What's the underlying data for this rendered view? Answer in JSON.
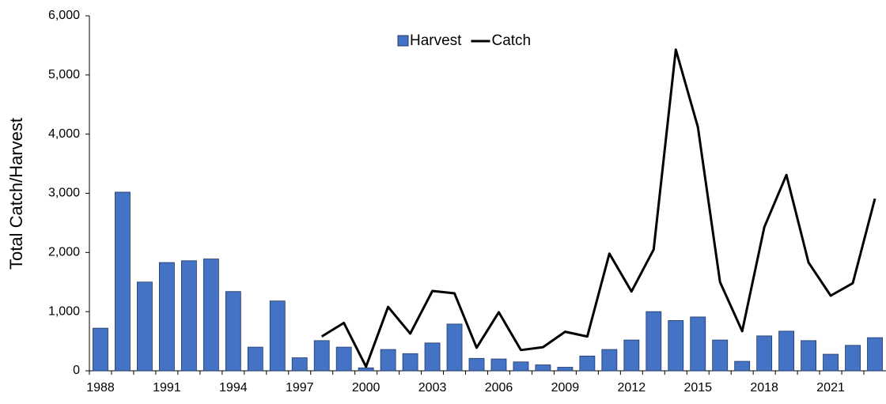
{
  "chart_data": {
    "type": "bar_line",
    "y_label": "Total Catch/Harvest",
    "categories": [
      "1988",
      null,
      null,
      "1991",
      null,
      null,
      "1994",
      null,
      null,
      "1997",
      null,
      null,
      "2000",
      null,
      null,
      "2003",
      null,
      null,
      "2006",
      null,
      null,
      "2009",
      null,
      null,
      "2012",
      null,
      null,
      "2015",
      null,
      null,
      "2018",
      null,
      null,
      "2021",
      null,
      null
    ],
    "series": [
      {
        "name": "Harvest",
        "type": "bar",
        "color": "#4472c4",
        "values": [
          720,
          3020,
          1500,
          1830,
          1860,
          1890,
          1340,
          400,
          1180,
          220,
          510,
          400,
          50,
          360,
          290,
          470,
          790,
          210,
          200,
          150,
          100,
          60,
          250,
          360,
          520,
          1000,
          850,
          910,
          520,
          160,
          590,
          670,
          510,
          280,
          430,
          560
        ]
      },
      {
        "name": "Catch",
        "type": "line",
        "color": "#000000",
        "values": [
          null,
          null,
          null,
          null,
          null,
          null,
          null,
          null,
          null,
          null,
          580,
          810,
          70,
          1080,
          630,
          1350,
          1310,
          390,
          990,
          350,
          400,
          660,
          580,
          1980,
          1340,
          2050,
          5430,
          4120,
          1500,
          670,
          2430,
          3310,
          1830,
          1270,
          1480,
          2910
        ]
      }
    ],
    "ylim": [
      0,
      6000
    ],
    "yticks": [
      0,
      {
        "value": 1000,
        "label": "1,000"
      },
      {
        "value": 2000,
        "label": "2,000"
      },
      {
        "value": 3000,
        "label": "3,000"
      },
      {
        "value": 4000,
        "label": "4,000"
      },
      {
        "value": 5000,
        "label": "5,000"
      },
      {
        "value": 6000,
        "label": "6,000"
      }
    ],
    "legend": "top"
  }
}
